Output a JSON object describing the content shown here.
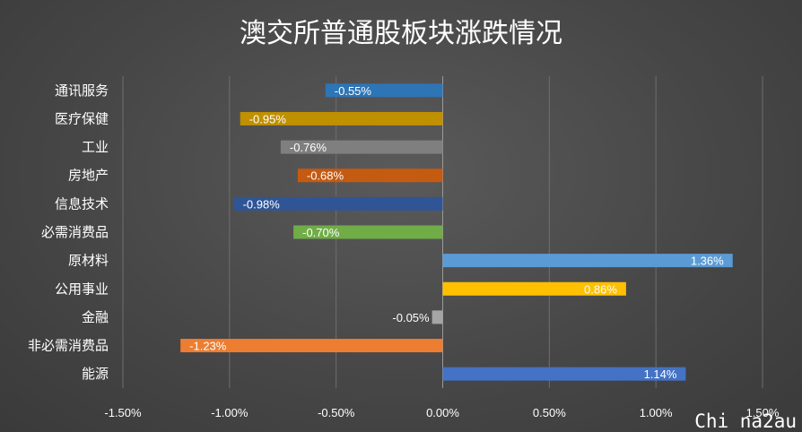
{
  "chart_data": {
    "type": "bar",
    "orientation": "horizontal",
    "title": "澳交所普通股板块涨跌情况",
    "categories": [
      "通讯服务",
      "医疗保健",
      "工业",
      "房地产",
      "信息技术",
      "必需消费品",
      "原材料",
      "公用事业",
      "金融",
      "非必需消费品",
      "能源"
    ],
    "values": [
      -0.55,
      -0.95,
      -0.76,
      -0.68,
      -0.98,
      -0.7,
      1.36,
      0.86,
      -0.05,
      -1.23,
      1.14
    ],
    "value_labels": [
      "-0.55%",
      "-0.95%",
      "-0.76%",
      "-0.68%",
      "-0.98%",
      "-0.70%",
      "1.36%",
      "0.86%",
      "-0.05%",
      "-1.23%",
      "1.14%"
    ],
    "colors": [
      "#2e75b6",
      "#bf9000",
      "#7f7f7f",
      "#c55a11",
      "#2f5597",
      "#70ad47",
      "#5b9bd5",
      "#ffc000",
      "#a5a5a5",
      "#ed7d31",
      "#4472c4"
    ],
    "xlim": [
      -1.5,
      1.5
    ],
    "x_ticks": [
      -1.5,
      -1.0,
      -0.5,
      0.0,
      0.5,
      1.0,
      1.5
    ],
    "x_tick_labels": [
      "-1.50%",
      "-1.00%",
      "-0.50%",
      "0.00%",
      "0.50%",
      "1.00%",
      "1.50%"
    ],
    "xlabel": "",
    "ylabel": "",
    "grid": "vertical",
    "legend": "none"
  },
  "watermark": "Chi na2au"
}
